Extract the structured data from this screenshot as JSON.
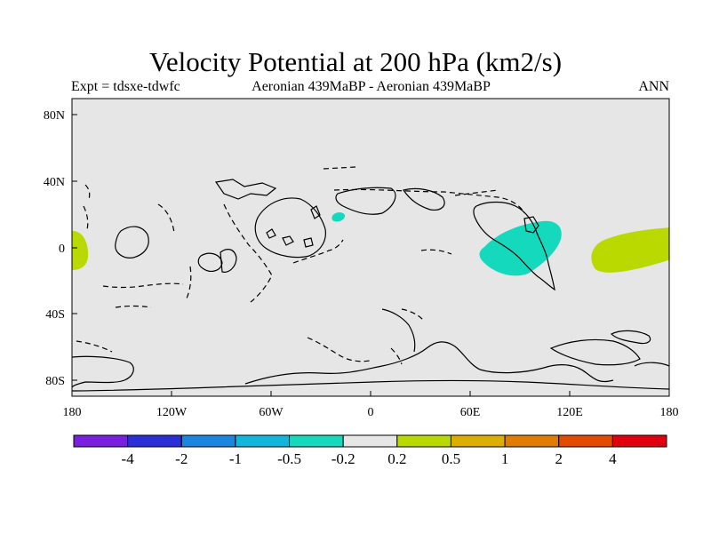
{
  "header": {
    "title": "Velocity Potential at 200 hPa (km2/s)",
    "left_label": "Expt = tdsxe-tdwfc",
    "center_label": "Aeronian 439MaBP - Aeronian 439MaBP",
    "right_label": "ANN"
  },
  "axes": {
    "x_ticks": [
      "180",
      "120W",
      "60W",
      "0",
      "60E",
      "120E",
      "180"
    ],
    "y_ticks": [
      "80N",
      "40N",
      "0",
      "40S",
      "80S"
    ]
  },
  "colorbar": {
    "colors": [
      "#7a1ee0",
      "#2b2fd8",
      "#1a86e0",
      "#12b6dc",
      "#14d9bc",
      "#e6e6e6",
      "#b9d900",
      "#dcae00",
      "#e07c00",
      "#e44a00",
      "#e0000e"
    ],
    "labels": [
      "-4",
      "-2",
      "-1",
      "-0.5",
      "-0.2",
      "0.2",
      "0.5",
      "1",
      "2",
      "4"
    ]
  },
  "colors": {
    "background": "#e6e6e6",
    "positive_anomaly": "#b9d900",
    "negative_anomaly": "#14d9bc"
  }
}
